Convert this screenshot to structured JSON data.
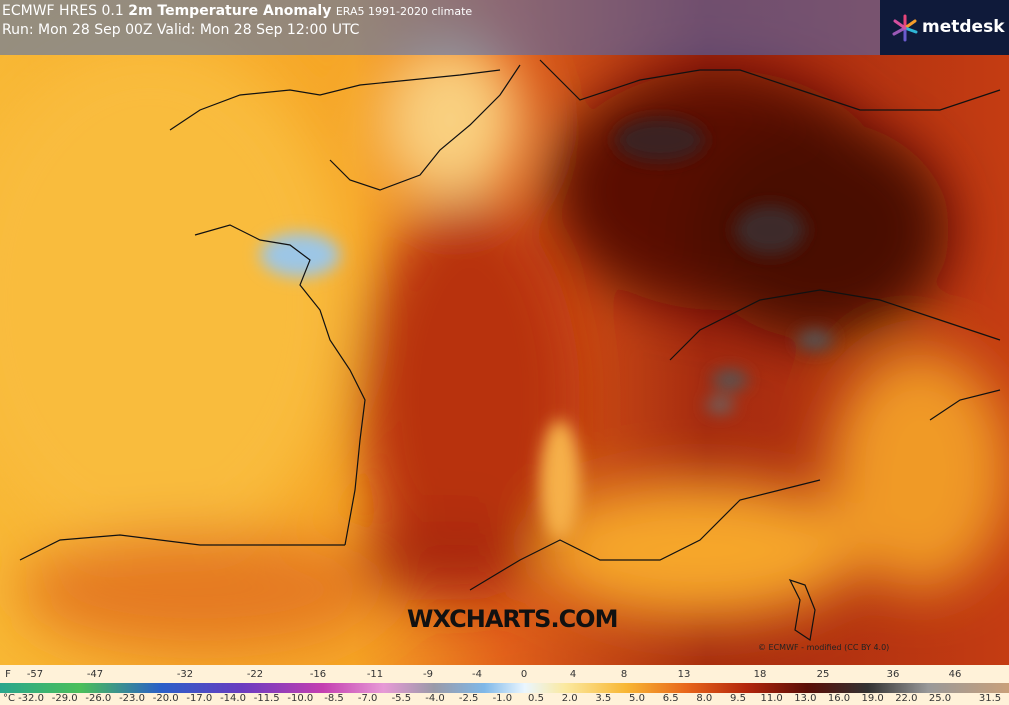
{
  "header": {
    "model": "ECMWF HRES 0.1",
    "title": "2m Temperature Anomaly",
    "climate": "ERA5 1991-2020 climate",
    "run": "Run: Mon 28 Sep 00Z Valid: Mon 28 Sep 12:00 UTC"
  },
  "logo": "metdesk",
  "watermark": "WXCHARTS.COM",
  "copyright": "© ECMWF - modified (CC BY 4.0)",
  "legend": {
    "f_unit": "F",
    "f_labels": [
      "-57",
      "-47",
      "-32",
      "-22",
      "-16",
      "-11",
      "-9",
      "-4",
      "0",
      "4",
      "8",
      "13",
      "18",
      "25",
      "36",
      "46"
    ],
    "c_unit": "°C",
    "c_labels": [
      "-32.0",
      "-29.0",
      "-26.0",
      "-23.0",
      "-20.0",
      "-17.0",
      "-14.0",
      "-11.5",
      "-10.0",
      "-8.5",
      "-7.0",
      "-5.5",
      "-4.0",
      "-2.5",
      "-1.0",
      "0.5",
      "2.0",
      "3.5",
      "5.0",
      "6.5",
      "8.0",
      "9.5",
      "11.0",
      "13.0",
      "16.0",
      "19.0",
      "22.0",
      "25.0",
      "31.5"
    ]
  }
}
